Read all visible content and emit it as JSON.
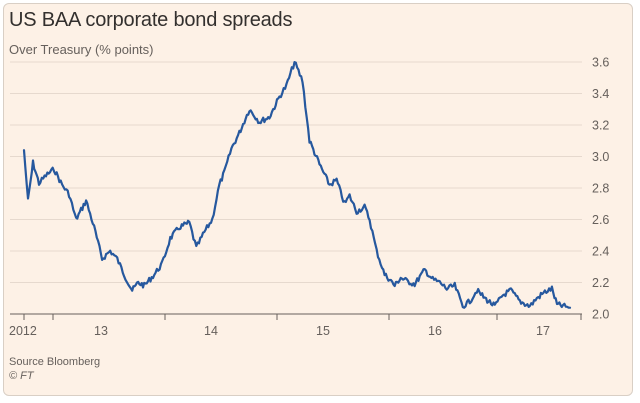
{
  "chart_data": {
    "type": "line",
    "title": "US BAA corporate bond spreads",
    "subtitle": "Over Treasury (% points)",
    "xlabel": "",
    "ylabel": "Over Treasury (% points)",
    "ylim": [
      2.0,
      3.6
    ],
    "yticks": [
      2.0,
      2.2,
      2.4,
      2.6,
      2.8,
      3.0,
      3.2,
      3.4,
      3.6
    ],
    "yticklabels": [
      "2.0",
      "2.2",
      "2.4",
      "2.6",
      "2.8",
      "3.0",
      "3.2",
      "3.4",
      "3.6"
    ],
    "xlim": [
      2012.0,
      2017.55
    ],
    "xticks": [
      2012,
      2013,
      2014,
      2015,
      2016,
      2017
    ],
    "xticklabels": [
      "2012",
      "13",
      "14",
      "15",
      "16",
      "17"
    ],
    "grid": "horizontal",
    "series": [
      {
        "name": "US BAA corporate bond spread",
        "color": "#26589e",
        "x": [
          2012.0,
          2012.04,
          2012.09,
          2012.15,
          2012.22,
          2012.3,
          2012.38,
          2012.45,
          2012.52,
          2012.62,
          2012.7,
          2012.78,
          2012.86,
          2012.93,
          2013.0,
          2013.08,
          2013.14,
          2013.2,
          2013.3,
          2013.38,
          2013.46,
          2013.55,
          2013.65,
          2013.72,
          2013.8,
          2013.88,
          2013.95,
          2014.0,
          2014.07,
          2014.15,
          2014.25,
          2014.35,
          2014.45,
          2014.55,
          2014.62,
          2014.7,
          2014.78,
          2014.85,
          2014.95,
          2015.05,
          2015.12,
          2015.2,
          2015.25,
          2015.32,
          2015.4,
          2015.45,
          2015.52,
          2015.6,
          2015.65,
          2015.7,
          2015.76,
          2015.82,
          2015.9,
          2016.0,
          2016.08,
          2016.15,
          2016.22,
          2016.3,
          2016.38,
          2016.45,
          2016.52,
          2016.6,
          2016.7,
          2016.78,
          2016.86,
          2016.95,
          2017.05,
          2017.12,
          2017.2,
          2017.27,
          2017.32,
          2017.38,
          2017.45
        ],
        "values": [
          3.04,
          2.72,
          2.96,
          2.83,
          2.88,
          2.92,
          2.82,
          2.76,
          2.6,
          2.72,
          2.55,
          2.35,
          2.4,
          2.35,
          2.25,
          2.15,
          2.2,
          2.18,
          2.25,
          2.32,
          2.48,
          2.55,
          2.58,
          2.42,
          2.52,
          2.6,
          2.82,
          2.9,
          3.05,
          3.15,
          3.3,
          3.22,
          3.25,
          3.38,
          3.45,
          3.6,
          3.48,
          3.1,
          2.95,
          2.82,
          2.85,
          2.7,
          2.75,
          2.65,
          2.68,
          2.6,
          2.4,
          2.25,
          2.22,
          2.18,
          2.23,
          2.21,
          2.19,
          2.28,
          2.22,
          2.2,
          2.16,
          2.18,
          2.05,
          2.08,
          2.15,
          2.1,
          2.05,
          2.12,
          2.15,
          2.08,
          2.05,
          2.1,
          2.14,
          2.16,
          2.06,
          2.05,
          2.04
        ]
      }
    ]
  },
  "footer": {
    "source": "Source Bloomberg",
    "credit": "© FT"
  }
}
